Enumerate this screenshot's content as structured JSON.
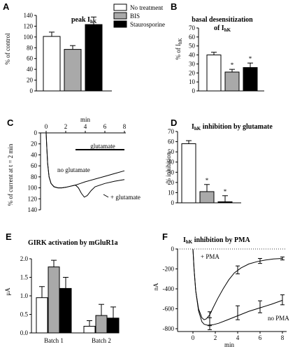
{
  "colors": {
    "white": "#ffffff",
    "gray": "#a9a9a9",
    "black": "#000000"
  },
  "chart_data": [
    {
      "panel": "A",
      "type": "bar",
      "title": "peak I",
      "title_sub": "hK",
      "ylabel": "% of control",
      "ylim": [
        0,
        140
      ],
      "yticks": [
        0,
        20,
        40,
        60,
        80,
        100,
        120,
        140
      ],
      "categories": [
        "No treatment",
        "BIS",
        "Staurosporine"
      ],
      "values": [
        101,
        77,
        123
      ],
      "errors": [
        8,
        7,
        14
      ],
      "legend": [
        "No treatment",
        "BIS",
        "Staurosporine"
      ]
    },
    {
      "panel": "B",
      "type": "bar",
      "title": "basal desensitization",
      "title2": "of I",
      "title2_sub": "hK",
      "ylabel": "% of I",
      "ylabel_sub": "hK",
      "ylim": [
        0,
        70
      ],
      "yticks": [
        0,
        10,
        20,
        30,
        40,
        50,
        60,
        70
      ],
      "categories": [
        "No treatment",
        "BIS",
        "Staurosporine"
      ],
      "values": [
        40,
        21,
        26
      ],
      "errors": [
        3,
        3,
        5
      ],
      "markers": [
        "",
        "*",
        "*"
      ]
    },
    {
      "panel": "C",
      "type": "line",
      "xlabel": "min",
      "xlim": [
        0,
        8
      ],
      "xticks": [
        0,
        2,
        4,
        6,
        8
      ],
      "ylabel": "% of current at t = 2 min",
      "ylim": [
        0,
        140
      ],
      "yticks": [
        0,
        20,
        40,
        60,
        80,
        100,
        120,
        140
      ],
      "bar_label": "glutamate",
      "bar_range": [
        3,
        8
      ],
      "series": [
        {
          "name": "no glutamate",
          "x": [
            0,
            0.05,
            0.15,
            0.3,
            0.5,
            0.8,
            1.2,
            1.6,
            2,
            2.5,
            3,
            3.5,
            4,
            5,
            6,
            7,
            8
          ],
          "y": [
            0,
            20,
            55,
            80,
            92,
            98,
            100,
            100,
            99,
            97,
            95,
            92,
            89,
            84,
            79,
            74,
            69
          ]
        },
        {
          "name": "glutamate",
          "x": [
            0,
            0.05,
            0.15,
            0.3,
            0.5,
            0.8,
            1.2,
            1.6,
            2,
            2.5,
            3,
            3.3,
            3.6,
            3.9,
            4.2,
            4.6,
            5,
            6,
            7,
            8
          ],
          "y": [
            0,
            20,
            55,
            80,
            92,
            98,
            100,
            100,
            99,
            97,
            95,
            100,
            110,
            117,
            114,
            105,
            98,
            92,
            88,
            85
          ]
        }
      ],
      "annotations": [
        "no glutamate",
        "glutamate"
      ]
    },
    {
      "panel": "D",
      "type": "bar",
      "title": "I",
      "title_sub": "hK",
      "title_rest": " inhibition by glutamate",
      "ylabel": "% inhibition",
      "ylim": [
        0,
        70
      ],
      "yticks": [
        0,
        10,
        20,
        30,
        40,
        50,
        60,
        70
      ],
      "categories": [
        "No treatment",
        "BIS",
        "Staurosporine"
      ],
      "values": [
        58,
        11,
        1
      ],
      "errors": [
        3,
        7,
        6
      ],
      "markers": [
        "",
        "*",
        "*"
      ]
    },
    {
      "panel": "E",
      "type": "bar",
      "title": "GIRK activation by mGluR1a",
      "ylabel": "μA",
      "ylim": [
        0,
        2.0
      ],
      "yticks": [
        "0.0",
        "0.5",
        "1.0",
        "1.5",
        "2.0"
      ],
      "categories": [
        "Batch 1",
        "Batch 2"
      ],
      "series": [
        {
          "name": "No treatment",
          "values": [
            0.95,
            0.18
          ],
          "errors": [
            0.3,
            0.15
          ]
        },
        {
          "name": "BIS",
          "values": [
            1.78,
            0.47
          ],
          "errors": [
            0.18,
            0.3
          ]
        },
        {
          "name": "Staurosporine",
          "values": [
            1.2,
            0.4
          ],
          "errors": [
            0.3,
            0.3
          ]
        }
      ]
    },
    {
      "panel": "F",
      "type": "line",
      "title": "I",
      "title_sub": "hK",
      "title_rest": " inhibition by PMA",
      "xlabel": "min",
      "xlim": [
        0,
        8
      ],
      "xticks": [
        0,
        2,
        4,
        6,
        8
      ],
      "ylabel": "nA",
      "ylim": [
        -800,
        0
      ],
      "yticks": [
        0,
        -200,
        -400,
        -600,
        -800
      ],
      "series": [
        {
          "name": "+ PMA",
          "x": [
            0,
            0.1,
            0.25,
            0.5,
            0.8,
            1.0,
            1.2,
            1.5,
            1.8,
            2.2,
            2.7,
            3.2,
            3.7,
            4.3,
            5,
            5.8,
            6.5,
            7.2,
            8
          ],
          "y": [
            0,
            -200,
            -420,
            -600,
            -690,
            -710,
            -700,
            -660,
            -590,
            -500,
            -400,
            -310,
            -240,
            -190,
            -150,
            -125,
            -110,
            -100,
            -95
          ],
          "points": [
            {
              "x": 1.5,
              "y": -700,
              "err": 70
            },
            {
              "x": 4,
              "y": -210,
              "err": 40
            },
            {
              "x": 6,
              "y": -120,
              "err": 25
            },
            {
              "x": 8,
              "y": -95,
              "err": 15
            }
          ]
        },
        {
          "name": "no PMA",
          "x": [
            0,
            0.1,
            0.25,
            0.5,
            0.8,
            1.0,
            1.3,
            1.8,
            2.3,
            3,
            4,
            5,
            6,
            7,
            8
          ],
          "y": [
            0,
            -200,
            -420,
            -620,
            -730,
            -755,
            -765,
            -760,
            -745,
            -715,
            -670,
            -625,
            -590,
            -555,
            -515
          ],
          "points": [
            {
              "x": 1.5,
              "y": -750,
              "err": 60
            },
            {
              "x": 4,
              "y": -640,
              "err": 70
            },
            {
              "x": 6,
              "y": -580,
              "err": 60
            },
            {
              "x": 8,
              "y": -510,
              "err": 50
            }
          ]
        }
      ],
      "annotations": [
        "+ PMA",
        "no PMA"
      ]
    }
  ]
}
